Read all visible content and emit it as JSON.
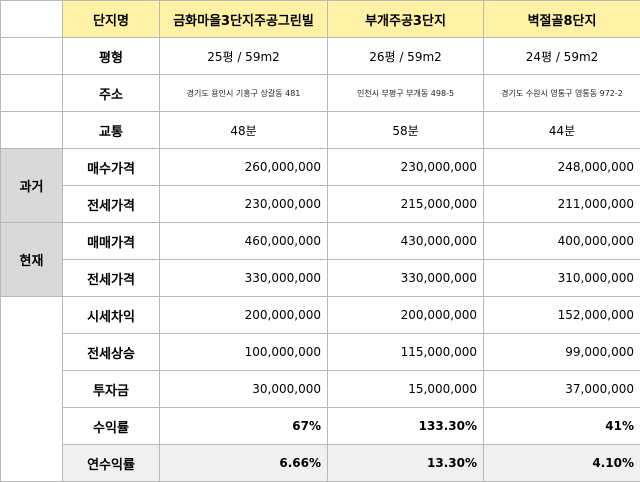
{
  "header": {
    "col_label": "단지명",
    "complexes": [
      "금화마을3단지주공그린빌",
      "부개주공3단지",
      "벽절골8단지"
    ]
  },
  "rows": {
    "size": {
      "label": "평형",
      "values": [
        "25평 / 59m2",
        "26평 / 59m2",
        "24평 / 59m2"
      ]
    },
    "address": {
      "label": "주소",
      "values": [
        "경기도 용인시 기흥구 상갈동 481",
        "인천시 부평구 부개동 498-5",
        "경기도 수원시 영통구 영통동 972-2"
      ]
    },
    "transit": {
      "label": "교통",
      "values": [
        "48분",
        "58분",
        "44분"
      ]
    }
  },
  "past": {
    "group_label": "과거",
    "buy": {
      "label": "매수가격",
      "values": [
        "260,000,000",
        "230,000,000",
        "248,000,000"
      ]
    },
    "jeonse": {
      "label": "전세가격",
      "values": [
        "230,000,000",
        "215,000,000",
        "211,000,000"
      ]
    }
  },
  "current": {
    "group_label": "현재",
    "sale": {
      "label": "매매가격",
      "values": [
        "460,000,000",
        "430,000,000",
        "400,000,000"
      ]
    },
    "jeonse": {
      "label": "전세가격",
      "values": [
        "330,000,000",
        "330,000,000",
        "310,000,000"
      ]
    }
  },
  "results": {
    "price_gap": {
      "label": "시세차익",
      "values": [
        "200,000,000",
        "200,000,000",
        "152,000,000"
      ]
    },
    "jeonse_rise": {
      "label": "전세상승",
      "values": [
        "100,000,000",
        "115,000,000",
        "99,000,000"
      ]
    },
    "investment": {
      "label": "투자금",
      "values": [
        "30,000,000",
        "15,000,000",
        "37,000,000"
      ]
    },
    "return_rate": {
      "label": "수익률",
      "values": [
        "67%",
        "133.30%",
        "41%"
      ]
    },
    "annual_return": {
      "label": "연수익률",
      "values": [
        "6.66%",
        "13.30%",
        "4.10%"
      ]
    }
  },
  "colors": {
    "header_bg": "#fff2a6",
    "group_bg": "#d9d9d9",
    "last_row_bg": "#f0f0f0",
    "border": "#b9b9b9"
  }
}
